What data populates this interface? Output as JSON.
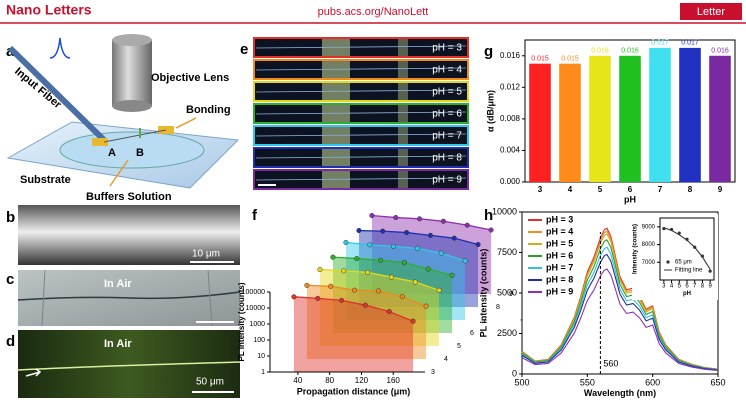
{
  "header": {
    "journal": "Nano Letters",
    "url": "pubs.acs.org/NanoLett",
    "tag": "Letter"
  },
  "panels": {
    "a": {
      "letter": "a",
      "objective": "Objective Lens",
      "fiber": "Input Fiber",
      "bonding": "Bonding",
      "point_a": "A",
      "point_b": "B",
      "substrate": "Substrate",
      "solution": "Buffers Solution"
    },
    "b": {
      "letter": "b",
      "scale": "10 μm"
    },
    "c": {
      "letter": "c",
      "medium": "In Air"
    },
    "d": {
      "letter": "d",
      "medium": "In Air",
      "scale": "50 μm"
    },
    "e": {
      "letter": "e",
      "labels": [
        "pH = 3",
        "pH = 4",
        "pH = 5",
        "pH = 6",
        "pH = 7",
        "pH = 8",
        "pH = 9"
      ],
      "colors": [
        "#e0302a",
        "#f08a1c",
        "#e5d81a",
        "#2cb02c",
        "#30c8e8",
        "#2030b0",
        "#7a2aa0"
      ]
    },
    "f": {
      "letter": "f"
    },
    "g": {
      "letter": "g"
    },
    "h": {
      "letter": "h"
    }
  },
  "chart_data": [
    {
      "type": "bar",
      "xlabel": "pH",
      "ylabel": "α (dB/μm)",
      "categories": [
        "3",
        "4",
        "5",
        "6",
        "7",
        "8",
        "9"
      ],
      "values": [
        0.015,
        0.015,
        0.016,
        0.016,
        0.017,
        0.017,
        0.016
      ],
      "colors": [
        "#ff2020",
        "#ff8c1a",
        "#e5e51a",
        "#20c020",
        "#40e0f0",
        "#2030c0",
        "#7a2aa0"
      ],
      "ylim": [
        0,
        0.018
      ],
      "yticks": [
        {
          "value": 0,
          "label": "0.000"
        },
        {
          "value": 0.004,
          "label": "0.004"
        },
        {
          "value": 0.008,
          "label": "0.008"
        },
        {
          "value": 0.012,
          "label": "0.012"
        },
        {
          "value": 0.016,
          "label": "0.016"
        }
      ]
    },
    {
      "type": "waterfall",
      "xlabel": "Propagation distance (μm)",
      "ylabel": "PL intensity (counts)",
      "zlabel": "pH",
      "x": [
        35,
        65,
        95,
        125,
        155,
        185
      ],
      "xlim": [
        20,
        200
      ],
      "xticks": [
        40,
        80,
        120,
        160
      ],
      "ylim": [
        1,
        100000
      ],
      "yticks": [
        1,
        10,
        100,
        1000,
        10000,
        100000
      ],
      "log_y": true,
      "series": [
        {
          "name": "3",
          "color": "#e0302a",
          "values": [
            50000,
            40000,
            30000,
            15000,
            6000,
            1500
          ]
        },
        {
          "name": "4",
          "color": "#f08a1c",
          "values": [
            40000,
            35000,
            20000,
            18000,
            8000,
            2000
          ]
        },
        {
          "name": "5",
          "color": "#e5d81a",
          "values": [
            60000,
            50000,
            40000,
            20000,
            10000,
            3000
          ]
        },
        {
          "name": "6",
          "color": "#2cb02c",
          "values": [
            55000,
            45000,
            35000,
            25000,
            10000,
            4000
          ]
        },
        {
          "name": "7",
          "color": "#30c8e8",
          "values": [
            70000,
            50000,
            40000,
            30000,
            15000,
            5000
          ]
        },
        {
          "name": "8",
          "color": "#2030b0",
          "values": [
            60000,
            55000,
            45000,
            30000,
            20000,
            8000
          ]
        },
        {
          "name": "9",
          "color": "#9030b0",
          "values": [
            80000,
            60000,
            50000,
            35000,
            20000,
            10000
          ]
        }
      ]
    },
    {
      "type": "line",
      "xlabel": "Wavelength (nm)",
      "ylabel": "PL intensity (counts)",
      "vline": 560,
      "x": [
        500,
        510,
        520,
        530,
        540,
        545,
        550,
        555,
        560,
        563,
        565,
        568,
        570,
        575,
        580,
        585,
        590,
        595,
        600,
        605,
        610,
        620,
        630,
        640,
        650
      ],
      "xlim": [
        500,
        650
      ],
      "xticks": [
        500,
        550,
        600,
        650
      ],
      "ylim": [
        0,
        10000
      ],
      "yticks": [
        0,
        2500,
        5000,
        7500,
        10000
      ],
      "series": [
        {
          "name": "pH = 3",
          "color": "#e0302a",
          "values": [
            1400,
            800,
            900,
            1800,
            3500,
            4800,
            6300,
            7200,
            8400,
            8900,
            9000,
            8500,
            7800,
            6000,
            5200,
            5300,
            4800,
            4000,
            4200,
            2600,
            1800,
            900,
            600,
            400,
            300
          ]
        },
        {
          "name": "pH = 4",
          "color": "#f08a1c",
          "values": [
            1370,
            780,
            880,
            1760,
            3430,
            4700,
            6170,
            7060,
            8230,
            8720,
            8820,
            8330,
            7640,
            5880,
            5100,
            5190,
            4700,
            3920,
            4120,
            2550,
            1760,
            880,
            590,
            390,
            290
          ]
        },
        {
          "name": "pH = 5",
          "color": "#c9b020",
          "values": [
            1340,
            770,
            860,
            1730,
            3360,
            4610,
            6050,
            6910,
            8060,
            8540,
            8640,
            8160,
            7490,
            5760,
            4990,
            5090,
            4610,
            3840,
            4030,
            2500,
            1730,
            860,
            580,
            380,
            290
          ]
        },
        {
          "name": "pH = 6",
          "color": "#2ca02c",
          "values": [
            1290,
            740,
            830,
            1660,
            3220,
            4420,
            5800,
            6620,
            7730,
            8190,
            8280,
            7820,
            7180,
            5520,
            4780,
            4880,
            4420,
            3680,
            3860,
            2390,
            1660,
            830,
            550,
            370,
            280
          ]
        },
        {
          "name": "pH = 7",
          "color": "#30c0e0",
          "values": [
            1220,
            700,
            780,
            1570,
            3050,
            4180,
            5480,
            6260,
            7310,
            7740,
            7830,
            7400,
            6790,
            5220,
            4520,
            4610,
            4180,
            3480,
            3650,
            2260,
            1570,
            780,
            520,
            350,
            260
          ]
        },
        {
          "name": "pH = 8",
          "color": "#1f2f9f",
          "values": [
            1150,
            660,
            740,
            1480,
            2870,
            3940,
            5170,
            5900,
            6890,
            7300,
            7380,
            6970,
            6400,
            4920,
            4260,
            4350,
            3940,
            3280,
            3440,
            2130,
            1480,
            740,
            490,
            330,
            250
          ]
        },
        {
          "name": "pH = 9",
          "color": "#9030b0",
          "values": [
            1010,
            580,
            650,
            1300,
            2520,
            3460,
            4540,
            5180,
            6050,
            6410,
            6480,
            6120,
            5620,
            4320,
            3740,
            3820,
            3460,
            2880,
            3020,
            1870,
            1300,
            650,
            430,
            290,
            220
          ]
        }
      ]
    },
    {
      "type": "scatter",
      "xlabel": "pH",
      "ylabel": "Intensity (counts)",
      "x": [
        3,
        4,
        5,
        6,
        7,
        8,
        9
      ],
      "xlim": [
        2.5,
        9.5
      ],
      "xticks": [
        3,
        4,
        5,
        6,
        7,
        8,
        9
      ],
      "ylim": [
        6000,
        9500
      ],
      "yticks": [
        7000,
        8000,
        9000
      ],
      "series": [
        {
          "name": "65 μm",
          "color": "#333333",
          "marker": true,
          "values": [
            8900,
            8850,
            8650,
            8300,
            7850,
            7350,
            6500
          ]
        },
        {
          "name": "Fitting line",
          "color": "#333333",
          "marker": false,
          "values": [
            8950,
            8800,
            8550,
            8250,
            7850,
            7300,
            6600
          ]
        }
      ]
    }
  ]
}
